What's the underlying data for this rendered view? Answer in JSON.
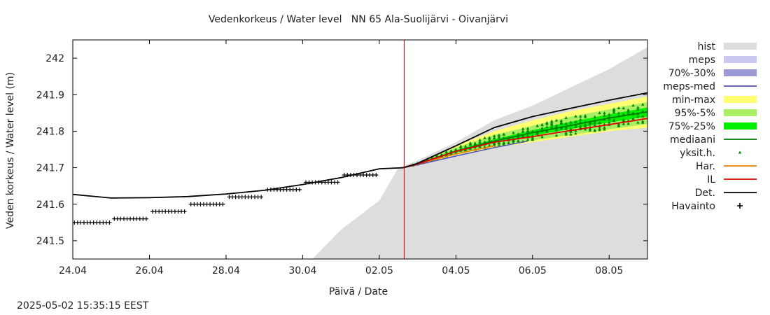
{
  "timestamp": "2025-05-02 15:35:15 EEST",
  "chart_data": {
    "type": "line",
    "title": "Vedenkorkeus / Water level   NN 65 Ala-Suolijärvi - Oivanjärvi",
    "xlabel": "Päivä / Date",
    "ylabel": "Veden korkeus / Water level (m)",
    "xlim": [
      "2025-04-24",
      "2025-05-09"
    ],
    "ylim": [
      241.45,
      242.05
    ],
    "x_ticks": [
      "24.04",
      "26.04",
      "28.04",
      "30.04",
      "02.05",
      "04.05",
      "06.05",
      "08.05"
    ],
    "y_ticks": [
      "241.5",
      "241.6",
      "241.7",
      "241.8",
      "241.9",
      "242"
    ],
    "forecast_start": "2025-05-02 15:35",
    "legend_position": "right",
    "legend": [
      {
        "label": "hist",
        "kind": "band",
        "color": "#dddddd"
      },
      {
        "label": "meps",
        "kind": "band",
        "color": "#c8c8f0"
      },
      {
        "label": "70%-30%",
        "kind": "band",
        "color": "#9a9ad8"
      },
      {
        "label": "meps-med",
        "kind": "line",
        "color": "#5050b8"
      },
      {
        "label": "min-max",
        "kind": "band",
        "color": "#ffff70"
      },
      {
        "label": "95%-5%",
        "kind": "band",
        "color": "#aaee66"
      },
      {
        "label": "75%-25%",
        "kind": "band",
        "color": "#00ee00"
      },
      {
        "label": "mediaani",
        "kind": "line",
        "color": "#007a00"
      },
      {
        "label": "yksit.h.",
        "kind": "point",
        "color": "#008800"
      },
      {
        "label": "Har.",
        "kind": "line",
        "color": "#e08000"
      },
      {
        "label": "IL",
        "kind": "line",
        "color": "#dd0000"
      },
      {
        "label": "Det.",
        "kind": "line",
        "color": "#000000"
      },
      {
        "label": "Havainto",
        "kind": "cross",
        "color": "#000000"
      }
    ],
    "series": {
      "hist_upper": {
        "x": [
          "2025-05-02 12:00",
          "2025-05-03 00:00",
          "2025-05-04 00:00",
          "2025-05-05 00:00",
          "2025-05-06 00:00",
          "2025-05-07 00:00",
          "2025-05-08 00:00",
          "2025-05-09 00:00"
        ],
        "y": [
          241.7,
          241.72,
          241.77,
          241.83,
          241.87,
          241.92,
          241.97,
          242.03
        ]
      },
      "hist_lower": {
        "x": [
          "2025-04-30 06:00",
          "2025-05-01 00:00",
          "2025-05-02 00:00",
          "2025-05-02 12:00"
        ],
        "y": [
          241.45,
          241.53,
          241.61,
          241.7
        ]
      },
      "min_max_upper": {
        "x": [
          "2025-05-02 15:00",
          "2025-05-03 00:00",
          "2025-05-04 00:00",
          "2025-05-05 00:00",
          "2025-05-06 00:00",
          "2025-05-07 00:00",
          "2025-05-08 00:00",
          "2025-05-09 00:00"
        ],
        "y": [
          241.7,
          241.713,
          241.76,
          241.8,
          241.83,
          241.855,
          241.875,
          241.895
        ]
      },
      "min_max_lower": {
        "x": [
          "2025-05-02 15:00",
          "2025-05-03 00:00",
          "2025-05-04 00:00",
          "2025-05-05 00:00",
          "2025-05-06 00:00",
          "2025-05-07 00:00",
          "2025-05-08 00:00",
          "2025-05-09 00:00"
        ],
        "y": [
          241.7,
          241.708,
          241.735,
          241.755,
          241.77,
          241.785,
          241.8,
          241.81
        ]
      },
      "p95_p5_upper": {
        "x": [
          "2025-05-02 15:00",
          "2025-05-03 00:00",
          "2025-05-04 00:00",
          "2025-05-05 00:00",
          "2025-05-06 00:00",
          "2025-05-07 00:00",
          "2025-05-08 00:00",
          "2025-05-09 00:00"
        ],
        "y": [
          241.7,
          241.712,
          241.755,
          241.79,
          241.815,
          241.84,
          241.86,
          241.88
        ]
      },
      "p95_p5_lower": {
        "x": [
          "2025-05-02 15:00",
          "2025-05-03 00:00",
          "2025-05-04 00:00",
          "2025-05-05 00:00",
          "2025-05-06 00:00",
          "2025-05-07 00:00",
          "2025-05-08 00:00",
          "2025-05-09 00:00"
        ],
        "y": [
          241.7,
          241.709,
          241.738,
          241.76,
          241.775,
          241.79,
          241.805,
          241.82
        ]
      },
      "p75_p25_upper": {
        "x": [
          "2025-05-02 15:00",
          "2025-05-03 00:00",
          "2025-05-04 00:00",
          "2025-05-05 00:00",
          "2025-05-06 00:00",
          "2025-05-07 00:00",
          "2025-05-08 00:00",
          "2025-05-09 00:00"
        ],
        "y": [
          241.7,
          241.711,
          241.748,
          241.778,
          241.803,
          241.826,
          241.846,
          241.865
        ]
      },
      "p75_p25_lower": {
        "x": [
          "2025-05-02 15:00",
          "2025-05-03 00:00",
          "2025-05-04 00:00",
          "2025-05-05 00:00",
          "2025-05-06 00:00",
          "2025-05-07 00:00",
          "2025-05-08 00:00",
          "2025-05-09 00:00"
        ],
        "y": [
          241.7,
          241.71,
          241.742,
          241.768,
          241.788,
          241.806,
          241.824,
          241.84
        ]
      },
      "mediaani": {
        "x": [
          "2025-05-02 15:00",
          "2025-05-03 00:00",
          "2025-05-04 00:00",
          "2025-05-05 00:00",
          "2025-05-06 00:00",
          "2025-05-07 00:00",
          "2025-05-08 00:00",
          "2025-05-09 00:00"
        ],
        "y": [
          241.7,
          241.711,
          241.745,
          241.773,
          241.796,
          241.816,
          241.836,
          241.853
        ]
      },
      "meps_median": {
        "x": [
          "2025-05-02 15:00",
          "2025-05-03 00:00",
          "2025-05-04 00:00",
          "2025-05-05 00:00",
          "2025-05-05 21:00"
        ],
        "y": [
          241.7,
          241.708,
          241.732,
          241.755,
          241.773
        ]
      },
      "harmonie": {
        "x": [
          "2025-05-02 15:00",
          "2025-05-03 00:00",
          "2025-05-04 00:00",
          "2025-05-05 00:00"
        ],
        "y": [
          241.7,
          241.71,
          241.738,
          241.76
        ]
      },
      "il": {
        "x": [
          "2025-05-02 15:00",
          "2025-05-03 00:00",
          "2025-05-04 00:00",
          "2025-05-05 00:00",
          "2025-05-06 00:00",
          "2025-05-07 00:00",
          "2025-05-08 00:00",
          "2025-05-09 00:00"
        ],
        "y": [
          241.7,
          241.71,
          241.745,
          241.77,
          241.785,
          241.802,
          241.818,
          241.835
        ]
      },
      "det": {
        "x": [
          "2025-04-24 00:00",
          "2025-04-25 00:00",
          "2025-04-26 00:00",
          "2025-04-27 00:00",
          "2025-04-28 00:00",
          "2025-04-29 00:00",
          "2025-04-30 00:00",
          "2025-05-01 00:00",
          "2025-05-02 00:00",
          "2025-05-02 15:00",
          "2025-05-03 00:00",
          "2025-05-04 00:00",
          "2025-05-05 00:00",
          "2025-05-06 00:00",
          "2025-05-07 00:00",
          "2025-05-08 00:00",
          "2025-05-09 00:00"
        ],
        "y": [
          241.627,
          241.617,
          241.618,
          241.621,
          241.628,
          241.638,
          241.654,
          241.673,
          241.697,
          241.7,
          241.712,
          241.76,
          241.81,
          241.84,
          241.863,
          241.885,
          241.905
        ]
      },
      "havainto": {
        "x": [
          "2025-04-24 00:00",
          "2025-04-25 00:00",
          "2025-04-25 01:00",
          "2025-04-26 00:00",
          "2025-04-26 01:00",
          "2025-04-27 00:00",
          "2025-04-27 01:00",
          "2025-04-28 00:00",
          "2025-04-28 01:00",
          "2025-04-29 00:00",
          "2025-04-29 01:00",
          "2025-04-30 00:00",
          "2025-04-30 01:00",
          "2025-05-01 00:00",
          "2025-05-01 01:00",
          "2025-05-02 00:00"
        ],
        "y": [
          241.55,
          241.55,
          241.56,
          241.56,
          241.58,
          241.58,
          241.6,
          241.6,
          241.62,
          241.62,
          241.64,
          241.64,
          241.66,
          241.66,
          241.68,
          241.68
        ]
      }
    }
  }
}
